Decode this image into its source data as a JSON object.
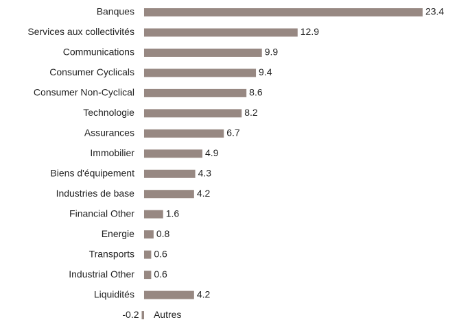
{
  "chart_data": {
    "type": "hbar",
    "categories": [
      "Banques",
      "Services aux collectivités",
      "Communications",
      "Consumer Cyclicals",
      "Consumer Non-Cyclical",
      "Technologie",
      "Assurances",
      "Immobilier",
      "Biens d'équipement",
      "Industries de base",
      "Financial Other",
      "Energie",
      "Transports",
      "Industrial Other",
      "Liquidités",
      "Autres"
    ],
    "values": [
      23.4,
      12.9,
      9.9,
      9.4,
      8.6,
      8.2,
      6.7,
      4.9,
      4.3,
      4.2,
      1.6,
      0.8,
      0.6,
      0.6,
      4.2,
      -0.2
    ],
    "color": "#978882",
    "xlim": [
      -0.5,
      25
    ]
  }
}
